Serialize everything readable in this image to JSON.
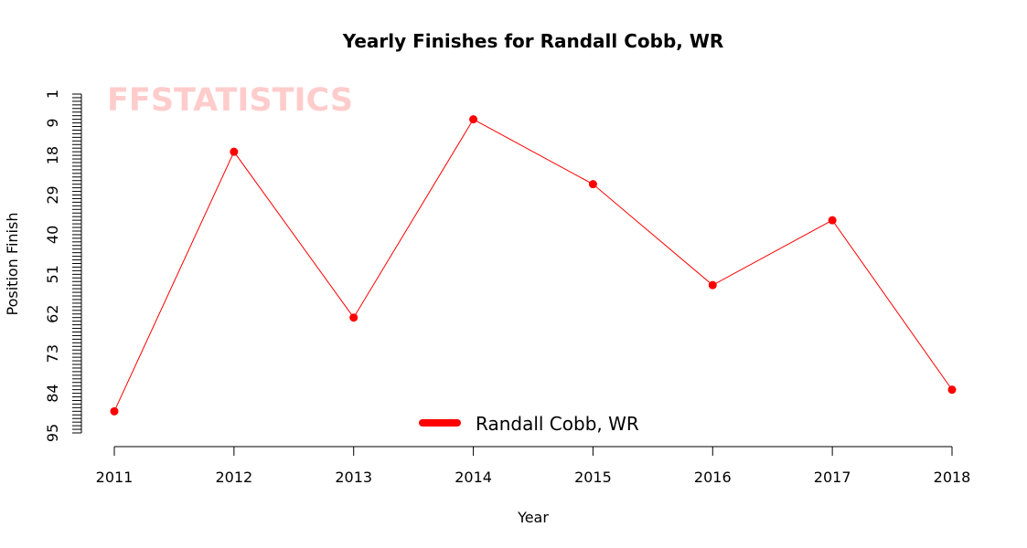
{
  "chart_data": {
    "type": "line",
    "title": "Yearly Finishes for Randall Cobb, WR",
    "xlabel": "Year",
    "ylabel": "Position Finish",
    "watermark": "FFSTATISTICS",
    "x": [
      2011,
      2012,
      2013,
      2014,
      2015,
      2016,
      2017,
      2018
    ],
    "series": [
      {
        "name": "Randall Cobb, WR",
        "values": [
          89,
          17,
          63,
          8,
          26,
          54,
          36,
          83
        ],
        "color": "#ff0000"
      }
    ],
    "yticks": [
      1,
      9,
      18,
      29,
      40,
      51,
      62,
      73,
      84,
      95
    ],
    "ylim": [
      1,
      95
    ],
    "y_reversed": true,
    "xlim": [
      2011,
      2018
    ],
    "grid": false,
    "legend_position": "bottom-center",
    "watermark_color": "#ffcccc"
  }
}
